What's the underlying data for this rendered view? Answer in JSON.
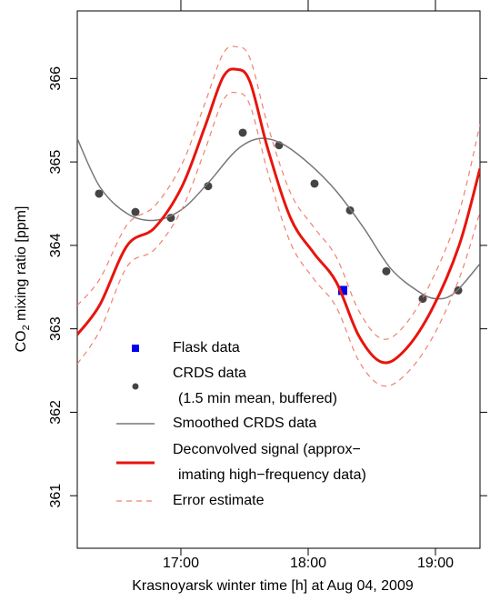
{
  "chart_data": {
    "type": "line",
    "xlabel": "Krasnoyarsk winter time [h] at Aug 04, 2009",
    "ylabel": {
      "main": "CO",
      "sub": "2",
      "rest": " mixing ratio [ppm]"
    },
    "xlim": [
      16.186,
      19.35
    ],
    "ylim": [
      360.37,
      366.81
    ],
    "xticks": [
      {
        "value": 17,
        "label": "17:00"
      },
      {
        "value": 18,
        "label": "18:00"
      },
      {
        "value": 19,
        "label": "19:00"
      }
    ],
    "yticks": [
      361,
      362,
      363,
      364,
      365,
      366
    ],
    "series": [
      {
        "name": [
          "Flask data"
        ],
        "kind": "square",
        "color": "#0000ee",
        "x": [
          18.271
        ],
        "values": [
          363.46
        ]
      },
      {
        "name": [
          "CRDS data",
          "(1.5 min mean, buffered)"
        ],
        "kind": "dot",
        "color": "#444444",
        "x": [
          16.357,
          16.643,
          16.921,
          17.214,
          17.486,
          17.771,
          18.05,
          18.329,
          18.614,
          18.9,
          19.179
        ],
        "values": [
          364.62,
          364.4,
          364.33,
          364.71,
          365.35,
          365.2,
          364.74,
          364.42,
          363.69,
          363.36,
          363.46
        ]
      },
      {
        "name": [
          "Smoothed CRDS data"
        ],
        "kind": "line",
        "color": "#777777",
        "x": [
          16.186,
          16.364,
          16.579,
          16.793,
          17.007,
          17.221,
          17.436,
          17.614,
          17.793,
          18.007,
          18.221,
          18.436,
          18.65,
          18.864,
          19.007,
          19.15,
          19.35
        ],
        "values": [
          365.28,
          364.7,
          364.38,
          364.3,
          364.43,
          364.76,
          365.14,
          365.28,
          365.22,
          364.98,
          364.65,
          364.21,
          363.72,
          363.45,
          363.36,
          363.43,
          363.78
        ]
      },
      {
        "name": [
          "Deconvolved signal (approx−",
          "imating high−frequency data)"
        ],
        "kind": "thick",
        "color": "#e8140c",
        "x": [
          16.186,
          16.364,
          16.579,
          16.793,
          17.007,
          17.186,
          17.329,
          17.436,
          17.543,
          17.686,
          17.864,
          18.043,
          18.221,
          18.4,
          18.579,
          18.757,
          18.971,
          19.186,
          19.35
        ],
        "values": [
          362.93,
          363.29,
          364.0,
          364.21,
          364.7,
          365.41,
          366.01,
          366.11,
          365.96,
          365.14,
          364.32,
          363.91,
          363.56,
          362.91,
          362.6,
          362.74,
          363.23,
          364.0,
          364.92
        ]
      },
      {
        "name": [
          "Error estimate"
        ],
        "kind": "dash",
        "color": "#f08070",
        "x": [
          16.186,
          16.364,
          16.579,
          16.793,
          17.007,
          17.186,
          17.329,
          17.436,
          17.543,
          17.686,
          17.864,
          18.043,
          18.221,
          18.4,
          18.579,
          18.757,
          18.971,
          19.186,
          19.35
        ],
        "values": [
          363.28,
          363.6,
          364.25,
          364.47,
          364.97,
          365.69,
          366.29,
          366.38,
          366.24,
          365.42,
          364.62,
          364.22,
          363.86,
          363.21,
          362.88,
          363.04,
          363.58,
          364.4,
          365.45
        ]
      },
      {
        "name": [],
        "kind": "dash",
        "color": "#f08070",
        "x": [
          16.186,
          16.364,
          16.579,
          16.793,
          17.007,
          17.186,
          17.329,
          17.436,
          17.543,
          17.686,
          17.864,
          18.043,
          18.221,
          18.4,
          18.579,
          18.757,
          18.971,
          19.186,
          19.35
        ],
        "values": [
          362.58,
          362.98,
          363.75,
          363.95,
          364.43,
          365.13,
          365.73,
          365.83,
          365.68,
          364.86,
          364.02,
          363.6,
          363.26,
          362.61,
          362.32,
          362.44,
          362.88,
          363.6,
          364.4
        ]
      }
    ]
  }
}
